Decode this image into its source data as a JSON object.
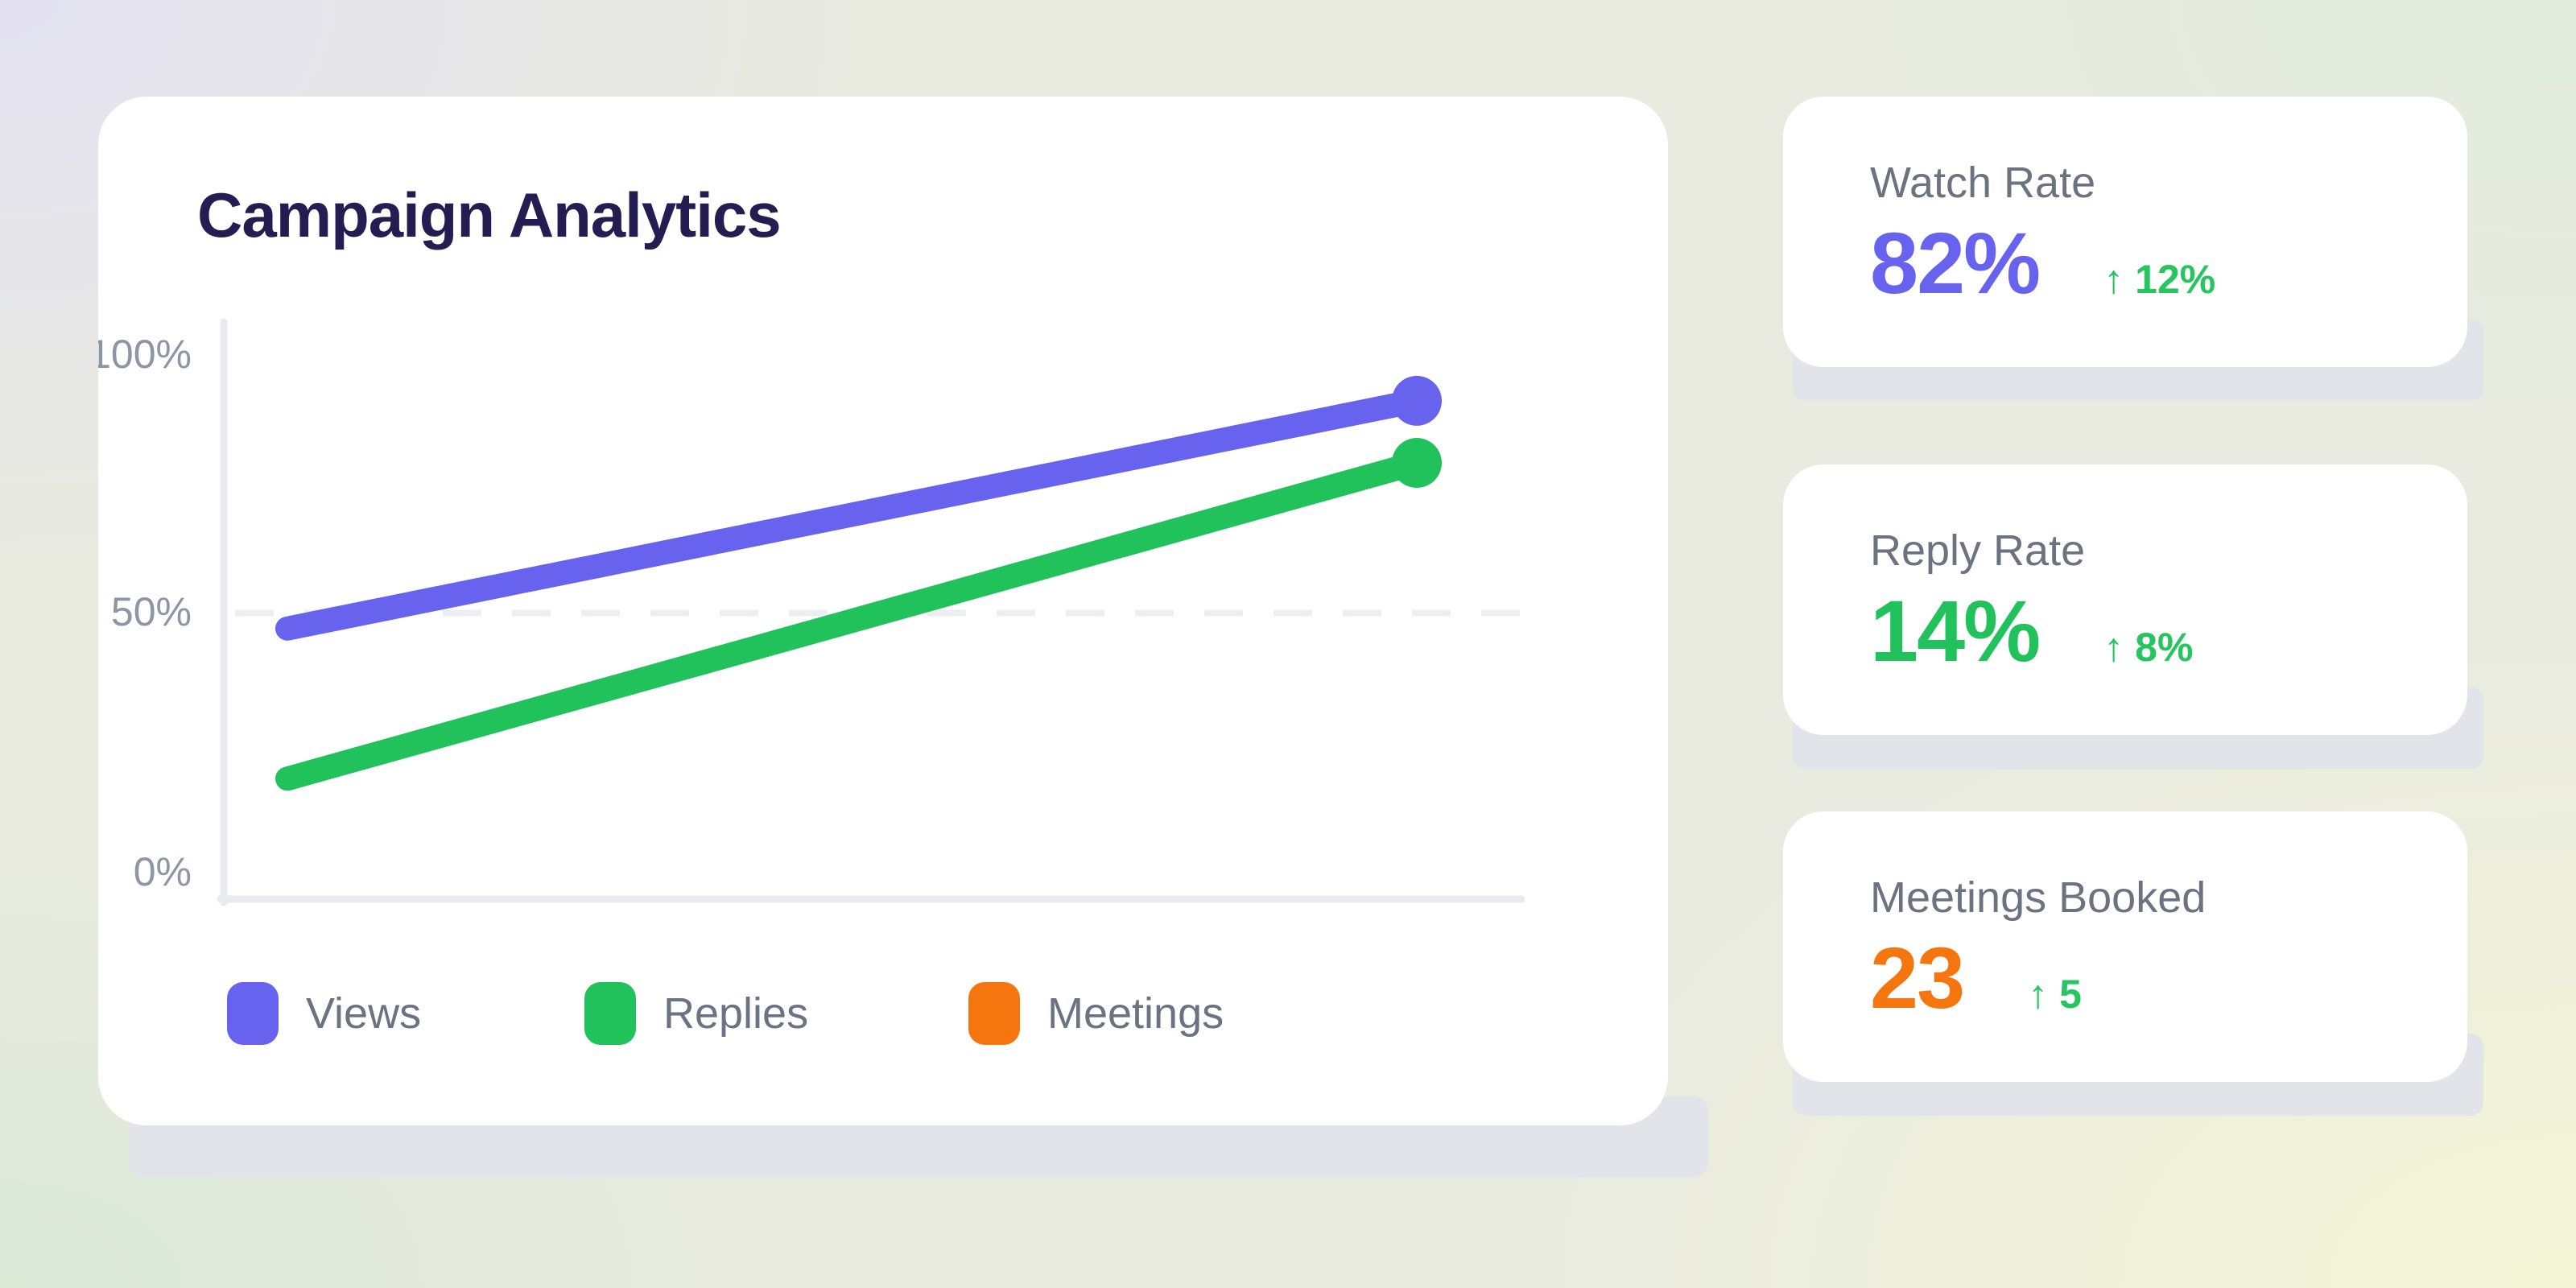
{
  "colors": {
    "purple": "#6863ef",
    "green": "#21c25c",
    "delta_green": "#26c55f",
    "orange": "#f5750e",
    "title_navy": "#231d52",
    "label_gray": "#6b7280",
    "tick_gray": "#8d96a4",
    "axis_gray": "#e8eaef",
    "grid_dash_gray": "#eceef2",
    "card_white": "#ffffff",
    "shadow_strip_gray": "#e2e4e9"
  },
  "chart_data": {
    "type": "line",
    "title": "Campaign Analytics",
    "x_labels": [],
    "ylim": [
      0,
      100
    ],
    "yticks": [
      "100%",
      "50%",
      "0%"
    ],
    "ytick_values": [
      100,
      50,
      0
    ],
    "gridline_value": 50,
    "gridline_style": "dashed",
    "legend_position": "bottom",
    "series": [
      {
        "name": "Views",
        "color": "#6863ef",
        "values": [
          47,
          91
        ],
        "end_dot": true,
        "plotted": true
      },
      {
        "name": "Replies",
        "color": "#21c25c",
        "values": [
          18,
          79
        ],
        "end_dot": true,
        "plotted": true
      },
      {
        "name": "Meetings",
        "color": "#f5750e",
        "values": [],
        "end_dot": false,
        "plotted": false
      }
    ]
  },
  "stats": [
    {
      "label": "Watch Rate",
      "value": "82%",
      "value_color": "#6863ef",
      "arrow": "↑",
      "delta": "12%"
    },
    {
      "label": "Reply Rate",
      "value": "14%",
      "value_color": "#21c25c",
      "arrow": "↑",
      "delta": "8%"
    },
    {
      "label": "Meetings Booked",
      "value": "23",
      "value_color": "#f5750e",
      "arrow": "↑",
      "delta": "5"
    }
  ]
}
